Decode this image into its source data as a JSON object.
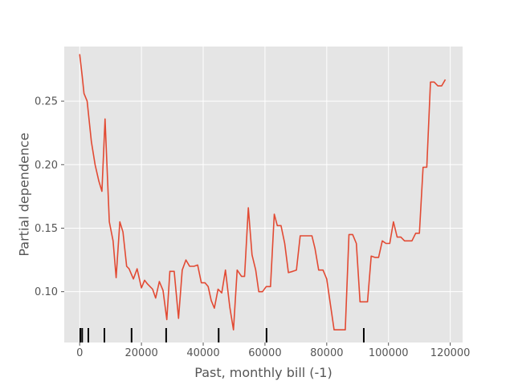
{
  "chart_data": {
    "type": "line",
    "xlabel": "Past, monthly bill (-1)",
    "ylabel": "Partial dependence",
    "xlim": [
      -5000,
      124000
    ],
    "ylim": [
      0.06,
      0.293
    ],
    "xticks": [
      0,
      20000,
      40000,
      60000,
      80000,
      100000,
      120000
    ],
    "xtick_labels": [
      "0",
      "20000",
      "40000",
      "60000",
      "80000",
      "100000",
      "120000"
    ],
    "yticks": [
      0.1,
      0.15,
      0.2,
      0.25
    ],
    "ytick_labels": [
      "0.10",
      "0.15",
      "0.20",
      "0.25"
    ],
    "grid": true,
    "colors": {
      "line": "#E24A33",
      "plot_bg": "#E5E5E5",
      "grid": "#FFFFFF",
      "deciles": "#000000"
    },
    "deciles": [
      200,
      800,
      2800,
      8000,
      16800,
      28000,
      45000,
      60500,
      92000
    ],
    "series": [
      {
        "name": "",
        "x": [
          0,
          800,
          1400,
          2400,
          3800,
          5000,
          6200,
          7200,
          8200,
          9600,
          10800,
          11800,
          13000,
          14000,
          15200,
          16000,
          17400,
          18600,
          20000,
          21000,
          22000,
          23600,
          24600,
          25800,
          27000,
          28200,
          29200,
          30600,
          32000,
          33200,
          34400,
          35600,
          37000,
          38200,
          39400,
          40600,
          41600,
          42600,
          43600,
          44800,
          46000,
          47200,
          48600,
          49800,
          51000,
          52400,
          53400,
          54600,
          55800,
          57000,
          58000,
          59200,
          60400,
          61800,
          63000,
          64000,
          65200,
          66400,
          67600,
          69000,
          70200,
          71400,
          72600,
          73800,
          75200,
          76200,
          77400,
          78800,
          80000,
          81200,
          82400,
          83600,
          84800,
          86000,
          87200,
          88400,
          89600,
          90800,
          92000,
          93200,
          94400,
          95600,
          96800,
          98000,
          99200,
          100400,
          101600,
          102800,
          104000,
          105200,
          106400,
          107600,
          108800,
          110000,
          111200,
          112400,
          113600,
          114800,
          116000,
          117200,
          118400
        ],
        "y": [
          0.287,
          0.27,
          0.256,
          0.25,
          0.218,
          0.2,
          0.187,
          0.179,
          0.236,
          0.155,
          0.14,
          0.111,
          0.155,
          0.147,
          0.12,
          0.118,
          0.11,
          0.118,
          0.103,
          0.109,
          0.106,
          0.102,
          0.095,
          0.108,
          0.101,
          0.078,
          0.116,
          0.116,
          0.079,
          0.117,
          0.125,
          0.12,
          0.12,
          0.121,
          0.107,
          0.107,
          0.104,
          0.093,
          0.087,
          0.102,
          0.099,
          0.117,
          0.088,
          0.07,
          0.117,
          0.112,
          0.112,
          0.166,
          0.129,
          0.117,
          0.1,
          0.1,
          0.104,
          0.104,
          0.161,
          0.152,
          0.152,
          0.138,
          0.115,
          0.116,
          0.117,
          0.144,
          0.144,
          0.144,
          0.144,
          0.134,
          0.117,
          0.117,
          0.11,
          0.09,
          0.07,
          0.07,
          0.07,
          0.07,
          0.145,
          0.145,
          0.138,
          0.092,
          0.092,
          0.092,
          0.128,
          0.127,
          0.127,
          0.14,
          0.138,
          0.138,
          0.155,
          0.143,
          0.143,
          0.14,
          0.14,
          0.14,
          0.146,
          0.146,
          0.198,
          0.198,
          0.265,
          0.265,
          0.262,
          0.262,
          0.267
        ]
      }
    ]
  }
}
